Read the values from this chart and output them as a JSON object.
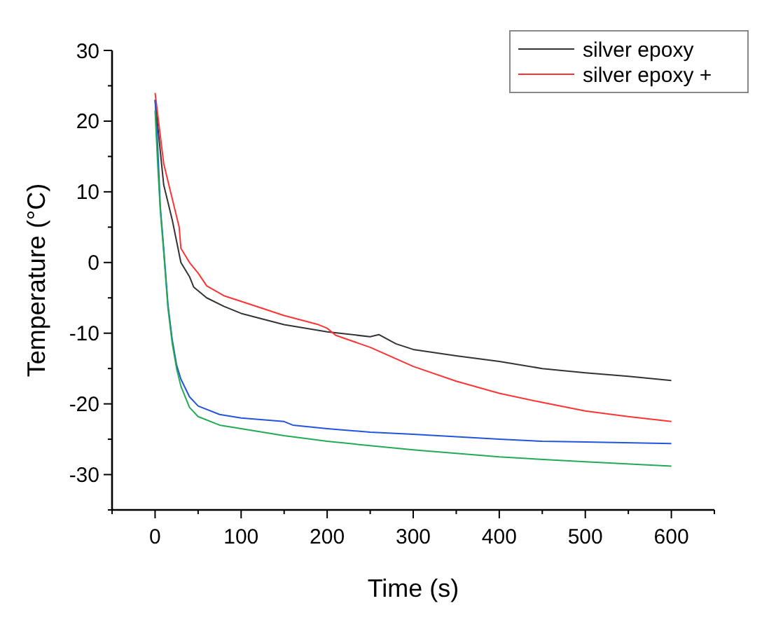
{
  "chart_data": {
    "type": "line",
    "xlabel": "Time (s)",
    "ylabel": "Temperature (°C)",
    "xlim": [
      -50,
      650
    ],
    "ylim": [
      -35,
      30
    ],
    "xticks": [
      {
        "value": -50,
        "label": null
      },
      0,
      {
        "value": 50,
        "label": null
      },
      100,
      {
        "value": 150,
        "label": null
      },
      200,
      {
        "value": 250,
        "label": null
      },
      300,
      {
        "value": 350,
        "label": null
      },
      400,
      {
        "value": 450,
        "label": null
      },
      500,
      {
        "value": 550,
        "label": null
      },
      600,
      {
        "value": 650,
        "label": null
      }
    ],
    "yticks": [
      {
        "value": -35,
        "label": null
      },
      -30,
      {
        "value": -25,
        "label": null
      },
      -20,
      {
        "value": -15,
        "label": null
      },
      -10,
      {
        "value": -5,
        "label": null
      },
      0,
      {
        "value": 5,
        "label": null
      },
      10,
      {
        "value": 15,
        "label": null
      },
      20,
      {
        "value": 25,
        "label": null
      },
      30
    ],
    "grid": false,
    "legend": "top right",
    "marker": "none",
    "line_style": "solid",
    "series": [
      {
        "name": "silver epoxy",
        "color": "#333333",
        "x": [
          0,
          5,
          10,
          20,
          25,
          30,
          40,
          45,
          60,
          80,
          100,
          150,
          200,
          250,
          260,
          280,
          300,
          350,
          400,
          450,
          500,
          550,
          600
        ],
        "values": [
          23,
          17,
          11,
          6,
          3,
          0,
          -2,
          -3.5,
          -5,
          -6.2,
          -7.2,
          -8.8,
          -9.8,
          -10.5,
          -10.2,
          -11.5,
          -12.3,
          -13.2,
          -14,
          -15,
          -15.6,
          -16.1,
          -16.7
        ]
      },
      {
        "name": "silver epoxy +",
        "color": "#ff3333",
        "x": [
          0,
          5,
          10,
          20,
          25,
          28,
          30,
          40,
          50,
          60,
          80,
          100,
          150,
          190,
          200,
          210,
          250,
          300,
          350,
          400,
          450,
          500,
          550,
          600
        ],
        "values": [
          24,
          19,
          14,
          9,
          6.5,
          5,
          2,
          0,
          -1.5,
          -3.3,
          -4.7,
          -5.5,
          -7.5,
          -8.8,
          -9.3,
          -10.3,
          -12,
          -14.7,
          -16.8,
          -18.5,
          -19.8,
          -21,
          -21.8,
          -22.5
        ]
      },
      {
        "color": "#2255dd",
        "x": [
          0,
          3,
          6,
          10,
          15,
          20,
          25,
          30,
          40,
          50,
          75,
          100,
          150,
          160,
          200,
          250,
          300,
          400,
          450,
          500,
          600
        ],
        "values": [
          23,
          16.5,
          8,
          2,
          -6,
          -11,
          -14.5,
          -16.5,
          -19,
          -20.3,
          -21.5,
          -22,
          -22.5,
          -23,
          -23.5,
          -24,
          -24.3,
          -25,
          -25.3,
          -25.4,
          -25.6
        ]
      },
      {
        "color": "#22aa55",
        "x": [
          0,
          3,
          6,
          10,
          15,
          20,
          25,
          30,
          40,
          50,
          75,
          100,
          150,
          200,
          300,
          400,
          500,
          600
        ],
        "values": [
          21.5,
          14,
          7.5,
          1.5,
          -6.5,
          -11.5,
          -15,
          -17.5,
          -20.5,
          -21.8,
          -23,
          -23.5,
          -24.5,
          -25.3,
          -26.5,
          -27.5,
          -28.2,
          -28.8
        ]
      }
    ]
  }
}
